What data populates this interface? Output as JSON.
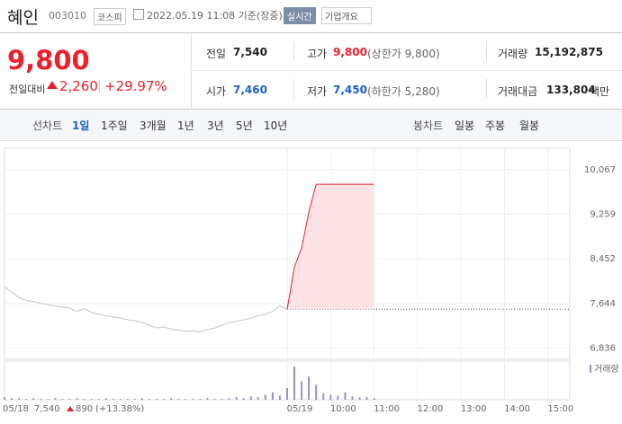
{
  "header": {
    "name": "혜인",
    "code": "003010",
    "market": "코스피",
    "timestamp": "2022.05.19 11:08 기준(장중)",
    "realtime": "실시간",
    "company_menu": "기업개요"
  },
  "price": {
    "current": "9,800",
    "change_label": "전일대비",
    "change": "2,260",
    "change_rate": "+29.97%"
  },
  "stats": [
    {
      "label": "전일",
      "value": "7,540"
    },
    {
      "label": "고가",
      "value": "9,800",
      "note": "(상한가 9,800)"
    },
    {
      "label": "거래량",
      "value": "15,192,875"
    },
    {
      "label": "시가",
      "value": "7,460"
    },
    {
      "label": "저가",
      "value": "7,450",
      "note": "(하한가 5,280)"
    },
    {
      "label": "거래대금",
      "value": "133,804",
      "unit": "백만"
    }
  ],
  "tabs": {
    "line_label": "선차트",
    "line_periods": [
      "1일",
      "1주일",
      "3개월",
      "1년",
      "3년",
      "5년",
      "10년"
    ],
    "candle_label": "봉차트",
    "candle_periods": [
      "일봉",
      "주봉",
      "월봉"
    ]
  },
  "chart_data": {
    "type": "line",
    "categories": [
      null,
      null,
      null,
      null,
      null,
      null,
      null,
      null,
      null,
      null,
      null,
      null,
      null,
      null,
      null,
      null,
      null,
      null,
      null,
      null,
      null,
      null,
      null,
      null,
      null,
      null,
      null,
      null,
      null,
      null,
      null,
      null,
      null,
      null,
      null,
      null,
      null,
      null,
      null,
      "05/19",
      null,
      null,
      null,
      null,
      null,
      "10:00",
      null,
      null,
      null,
      null,
      null,
      "11:00",
      null,
      null,
      null,
      null,
      null,
      "12:00",
      null,
      null,
      null,
      null,
      null,
      "13:00",
      null,
      null,
      null,
      null,
      null,
      "14:00",
      null,
      null,
      null,
      null,
      null,
      "15:00",
      null,
      null
    ],
    "series": [
      {
        "color": "#c4c4c4",
        "values": [
          7950,
          7850,
          7750,
          7700,
          7680,
          7650,
          7620,
          7600,
          7580,
          7560,
          7500,
          7550,
          7480,
          7450,
          7420,
          7400,
          7380,
          7350,
          7330,
          7300,
          7250,
          7200,
          7220,
          7180,
          7160,
          7140,
          7150,
          7130,
          7170,
          7200,
          7250,
          7300,
          7320,
          7350,
          7380,
          7420,
          7450,
          7500,
          7600,
          7540,
          null,
          null,
          null,
          null,
          null,
          null,
          null,
          null,
          null,
          null,
          null,
          null,
          null,
          null,
          null,
          null,
          null,
          null,
          null,
          null,
          null,
          null,
          null,
          null,
          null,
          null,
          null,
          null,
          null,
          null,
          null,
          null,
          null,
          null,
          null,
          null,
          null,
          null
        ]
      },
      {
        "color": "#e8212b",
        "fill": "#fde3e6",
        "values": [
          null,
          null,
          null,
          null,
          null,
          null,
          null,
          null,
          null,
          null,
          null,
          null,
          null,
          null,
          null,
          null,
          null,
          null,
          null,
          null,
          null,
          null,
          null,
          null,
          null,
          null,
          null,
          null,
          null,
          null,
          null,
          null,
          null,
          null,
          null,
          null,
          null,
          null,
          null,
          7540,
          8300,
          8650,
          9300,
          9800,
          9800,
          9800,
          9800,
          9800,
          9800,
          9800,
          9800,
          9800,
          null,
          null,
          null,
          null,
          null,
          null,
          null,
          null,
          null,
          null,
          null,
          null,
          null,
          null,
          null,
          null,
          null,
          null,
          null,
          null,
          null,
          null,
          null,
          null,
          null,
          null
        ]
      }
    ],
    "reference": 7540,
    "ylim": [
      6634,
      10453
    ],
    "yticks": [
      {
        "value": 6836,
        "label": "6,836"
      },
      {
        "value": 7644,
        "label": "7,644"
      },
      {
        "value": 8452,
        "label": "8,452"
      },
      {
        "value": 9259,
        "label": "9,259"
      },
      {
        "value": 10067,
        "label": "10,067"
      }
    ],
    "volume": {
      "name": "거래량",
      "color": "#9b8fc9",
      "values": [
        3,
        2,
        2,
        1,
        2,
        1,
        1,
        2,
        1,
        1,
        2,
        1,
        1,
        1,
        2,
        1,
        1,
        1,
        1,
        2,
        1,
        1,
        1,
        2,
        1,
        1,
        1,
        1,
        2,
        1,
        1,
        2,
        3,
        2,
        4,
        3,
        6,
        9,
        5,
        14,
        40,
        22,
        28,
        18,
        8,
        6,
        5,
        9,
        4,
        3,
        3,
        2,
        0,
        0,
        0,
        0,
        0,
        0,
        0,
        0,
        0,
        0,
        0,
        0,
        0,
        0,
        0,
        0,
        0,
        0,
        0,
        0,
        0,
        0,
        0,
        0,
        0,
        0
      ]
    },
    "grid": true
  },
  "footer": {
    "date": "05/18",
    "close": "7,540",
    "change": "890",
    "rate": "(+13.38%)"
  }
}
